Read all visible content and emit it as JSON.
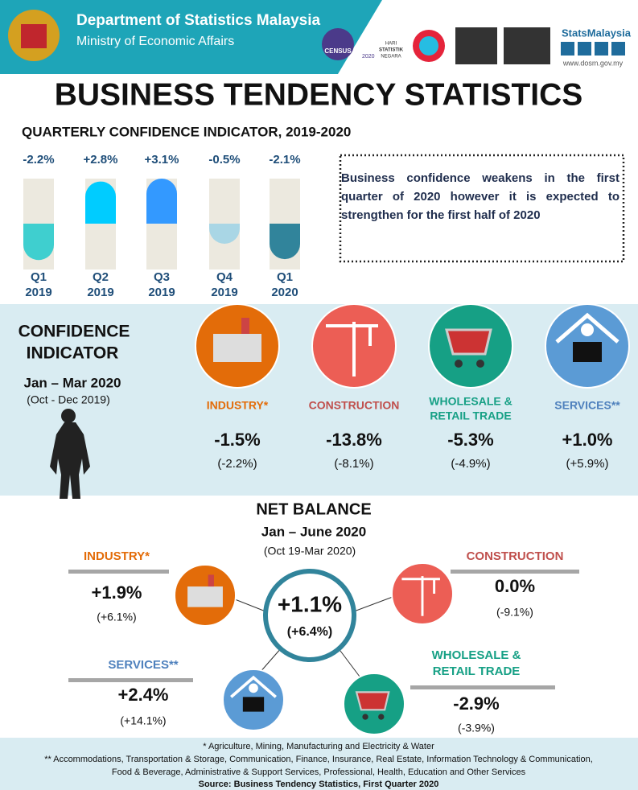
{
  "header": {
    "org": "Department of Statistics Malaysia",
    "ministry": "Ministry of Economic Affairs",
    "census": "CENSUS",
    "census_year": "2020",
    "hari": "HARI",
    "statistik": "STATISTIK",
    "negara": "NEGARA",
    "brand": "StatsMalaysia",
    "url": "www.dosm.gov.my"
  },
  "title": "BUSINESS TENDENCY STATISTICS",
  "quarterly": {
    "title": "QUARTERLY CONFIDENCE INDICATOR, 2019-2020",
    "quarters": [
      "Q1",
      "Q2",
      "Q3",
      "Q4",
      "Q1"
    ],
    "years": [
      "2019",
      "2019",
      "2019",
      "2019",
      "2020"
    ],
    "values": [
      -2.2,
      2.8,
      3.1,
      -0.5,
      -2.1
    ],
    "value_labels": [
      "-2.2%",
      "+2.8%",
      "+3.1%",
      "-0.5%",
      "-2.1%"
    ],
    "colors": [
      "#3fcfcf",
      "#00ccff",
      "#3399ff",
      "#a9d6e5",
      "#31849b"
    ]
  },
  "note": "Business confidence weakens  in the first quarter of 2020 however it is expected to strengthen for the first half of 2020",
  "confidence": {
    "title_1": "CONFIDENCE",
    "title_2": "INDICATOR",
    "period": "Jan – Mar 2020",
    "previous": "(Oct - Dec 2019)",
    "sectors": [
      {
        "name_1": "INDUSTRY*",
        "value": "-1.5%",
        "previous": "(-2.2%)"
      },
      {
        "name_1": "CONSTRUCTION",
        "value": "-13.8%",
        "previous": "(-8.1%)"
      },
      {
        "name_1": "WHOLESALE &",
        "name_2": "RETAIL TRADE",
        "value": "-5.3%",
        "previous": "(-4.9%)"
      },
      {
        "name_1": "SERVICES**",
        "value": "+1.0%",
        "previous": "(+5.9%)"
      }
    ]
  },
  "net_balance": {
    "title": "NET BALANCE",
    "period": "Jan – June 2020",
    "previous": "(Oct 19-Mar 2020)",
    "overall": "+1.1%",
    "overall_previous": "(+6.4%)",
    "industry": {
      "name": "INDUSTRY*",
      "value": "+1.9%",
      "previous": "(+6.1%)"
    },
    "construction": {
      "name": "CONSTRUCTION",
      "value": "0.0%",
      "previous": "(-9.1%)"
    },
    "services": {
      "name": "SERVICES**",
      "value": "+2.4%",
      "previous": "(+14.1%)"
    },
    "wholesale": {
      "name_1": "WHOLESALE &",
      "name_2": "RETAIL  TRADE",
      "value": "-2.9%",
      "previous": "(-3.9%)"
    }
  },
  "footer": {
    "line_1": "* Agriculture, Mining, Manufacturing and  Electricity & Water",
    "line_2": "** Accommodations, Transportation & Storage, Communication, Finance, Insurance, Real Estate, Information Technology & Communication,",
    "line_3": "Food & Beverage,  Administrative & Support Services, Professional, Health, Education and Other Services",
    "source": "Source: Business Tendency Statistics, First Quarter 2020"
  }
}
